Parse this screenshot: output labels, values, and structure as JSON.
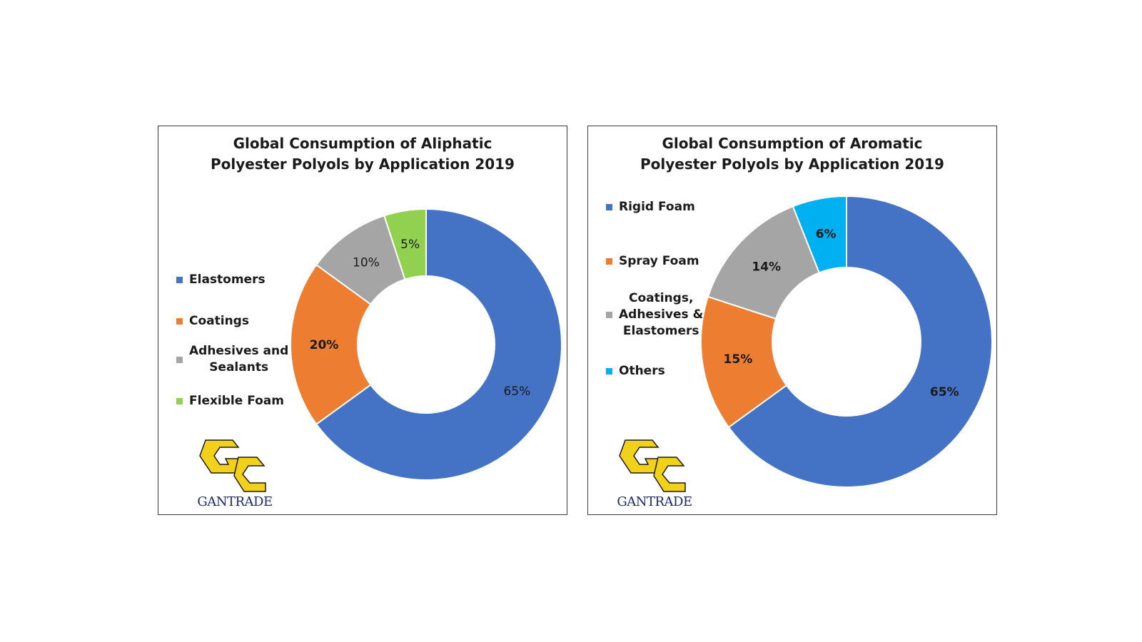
{
  "chart_data": [
    {
      "type": "pie",
      "variant": "donut",
      "title_lines": [
        "Global Consumption of Aliphatic",
        "Polyester Polyols by Application 2019"
      ],
      "slices": [
        {
          "name": "Elastomers",
          "value": 65,
          "label": "65%",
          "color": "#4472C4",
          "label_weight": "normal"
        },
        {
          "name": "Coatings",
          "value": 20,
          "label": "20%",
          "color": "#ED7D31",
          "label_weight": "bold"
        },
        {
          "name": "Adhesives and Sealants",
          "value": 10,
          "label": "10%",
          "color": "#A5A5A5",
          "label_weight": "normal"
        },
        {
          "name": "Flexible Foam",
          "value": 5,
          "label": "5%",
          "color": "#92D050",
          "label_weight": "normal"
        }
      ],
      "legend": [
        {
          "lines": [
            "Elastomers"
          ],
          "color": "#4472C4"
        },
        {
          "lines": [
            "Coatings"
          ],
          "color": "#ED7D31"
        },
        {
          "lines": [
            "Adhesives and",
            "Sealants"
          ],
          "color": "#A5A5A5"
        },
        {
          "lines": [
            "Flexible Foam"
          ],
          "color": "#92D050"
        }
      ],
      "legend_position": "left",
      "logo_text": "GANTRADE"
    },
    {
      "type": "pie",
      "variant": "donut",
      "title_lines": [
        "Global Consumption of Aromatic",
        "Polyester Polyols by Application 2019"
      ],
      "slices": [
        {
          "name": "Rigid Foam",
          "value": 65,
          "label": "65%",
          "color": "#4472C4",
          "label_weight": "bold"
        },
        {
          "name": "Spray Foam",
          "value": 15,
          "label": "15%",
          "color": "#ED7D31",
          "label_weight": "bold"
        },
        {
          "name": "Coatings, Adhesives & Elastomers",
          "value": 14,
          "label": "14%",
          "color": "#A5A5A5",
          "label_weight": "bold"
        },
        {
          "name": "Others",
          "value": 6,
          "label": "6%",
          "color": "#00B0F0",
          "label_weight": "bold"
        }
      ],
      "legend": [
        {
          "lines": [
            "Rigid Foam"
          ],
          "color": "#4472C4"
        },
        {
          "lines": [
            "Spray Foam"
          ],
          "color": "#ED7D31"
        },
        {
          "lines": [
            "Coatings,",
            "Adhesives &",
            "Elastomers"
          ],
          "color": "#A5A5A5"
        },
        {
          "lines": [
            "Others"
          ],
          "color": "#00B0F0"
        }
      ],
      "legend_position": "left",
      "logo_text": "GANTRADE"
    }
  ]
}
